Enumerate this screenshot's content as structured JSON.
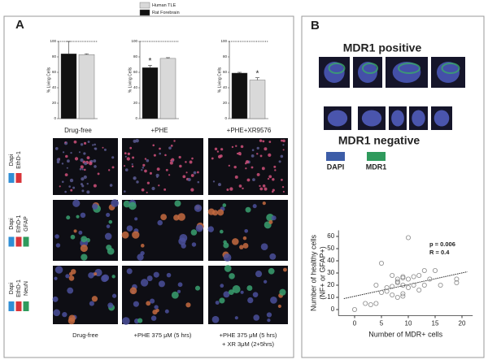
{
  "panel_a": {
    "label": "A",
    "image_rows": [
      {
        "stains": [
          "Dapi",
          "EthD-1"
        ]
      },
      {
        "stains": [
          "Dapi",
          "EthD-1",
          "GFAP"
        ]
      },
      {
        "stains": [
          "Dapi",
          "EthD-1",
          "NeuN"
        ]
      }
    ],
    "conditions": [
      [
        "Drug-free"
      ],
      [
        "+PHE 375 μM (5 hrs)"
      ],
      [
        "+PHE 375 μM (5 hrs)",
        "+ XR 3μM (2+5hrs)"
      ]
    ]
  },
  "panel_b": {
    "label": "B",
    "positive_title": "MDR1 positive",
    "negative_title": "MDR1 negative",
    "legend": [
      {
        "label": "DAPI",
        "color": "#3d5da8"
      },
      {
        "label": "MDR1",
        "color": "#2f9a5c"
      }
    ]
  },
  "chart_data": [
    {
      "type": "bar",
      "ylabel": "% Living Cells",
      "categories": [
        "Drug-free",
        "+PHE",
        "+PHE+XR9576"
      ],
      "series": [
        {
          "name": "Rat Forebrain",
          "color": "#111111",
          "values": [
            84,
            66,
            59
          ],
          "errors": [
            16,
            3,
            1
          ],
          "significance": [
            null,
            "*",
            null
          ]
        },
        {
          "name": "Human TLE",
          "color": "#d9d9d9",
          "values": [
            83,
            78,
            50
          ],
          "errors": [
            1,
            1,
            3
          ],
          "significance": [
            null,
            null,
            "*"
          ]
        }
      ],
      "ylim": [
        0,
        100
      ],
      "yticks": [
        0,
        20,
        40,
        60,
        80,
        100
      ]
    },
    {
      "type": "scatter",
      "xlabel": "Number of MDR+ cells",
      "ylabel": [
        "Number of healthy cells",
        "(NF+ or GFAP+)"
      ],
      "annotations": [
        "p = 0.006",
        "R = 0.4"
      ],
      "x": [
        0,
        2,
        3,
        4,
        4,
        5,
        5,
        6,
        6,
        7,
        7,
        7,
        8,
        8,
        8,
        8,
        9,
        9,
        9,
        9,
        9,
        10,
        10,
        10,
        11,
        11,
        12,
        12,
        13,
        13,
        14,
        15,
        16,
        19,
        19
      ],
      "values": [
        0,
        5,
        4,
        5,
        20,
        38,
        14,
        18,
        15,
        28,
        19,
        12,
        25,
        22,
        10,
        23,
        26,
        20,
        27,
        13,
        11,
        59,
        25,
        18,
        20,
        27,
        28,
        16,
        32,
        20,
        25,
        32,
        20,
        22,
        25
      ],
      "trendline": {
        "x": [
          -2,
          21
        ],
        "y": [
          9,
          31
        ]
      },
      "xlim": [
        -3,
        22
      ],
      "ylim": [
        -5,
        65
      ],
      "xticks": [
        0,
        5,
        10,
        15,
        20
      ],
      "yticks": [
        0,
        10,
        20,
        30,
        40,
        50,
        60
      ]
    }
  ]
}
